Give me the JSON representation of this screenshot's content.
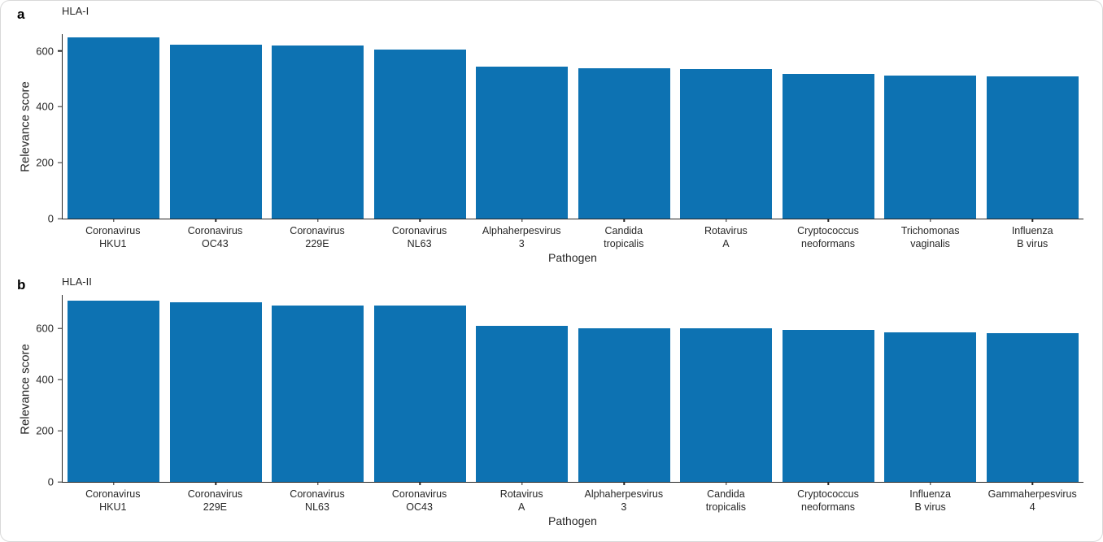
{
  "figure": {
    "background": "#ffffff",
    "border_color": "#d9d9d9",
    "bar_color": "#0d72b2",
    "axis_color": "#262626",
    "text_color": "#262626"
  },
  "chart_data": [
    {
      "type": "bar",
      "panel_label": "a",
      "title": "HLA-I",
      "xlabel": "Pathogen",
      "ylabel": "Relevance score",
      "categories": [
        "Coronavirus\nHKU1",
        "Coronavirus\nOC43",
        "Coronavirus\n229E",
        "Coronavirus\nNL63",
        "Alphaherpesvirus\n3",
        "Candida\ntropicalis",
        "Rotavirus\nA",
        "Cryptococcus\nneoformans",
        "Trichomonas\nvaginalis",
        "Influenza\nB virus"
      ],
      "values": [
        648,
        622,
        620,
        605,
        544,
        538,
        535,
        518,
        512,
        510
      ],
      "yticks": [
        0,
        200,
        400,
        600
      ],
      "ylim": [
        0,
        660
      ],
      "bar_color": "#0d72b2",
      "grid": false,
      "legend": null
    },
    {
      "type": "bar",
      "panel_label": "b",
      "title": "HLA-II",
      "xlabel": "Pathogen",
      "ylabel": "Relevance score",
      "categories": [
        "Coronavirus\nHKU1",
        "Coronavirus\n229E",
        "Coronavirus\nNL63",
        "Coronavirus\nOC43",
        "Rotavirus\nA",
        "Alphaherpesvirus\n3",
        "Candida\ntropicalis",
        "Cryptococcus\nneoformans",
        "Influenza\nB virus",
        "Gammaherpesvirus\n4"
      ],
      "values": [
        708,
        703,
        690,
        688,
        608,
        601,
        599,
        595,
        585,
        580
      ],
      "yticks": [
        0,
        200,
        400,
        600
      ],
      "ylim": [
        0,
        730
      ],
      "bar_color": "#0d72b2",
      "grid": false,
      "legend": null
    }
  ]
}
